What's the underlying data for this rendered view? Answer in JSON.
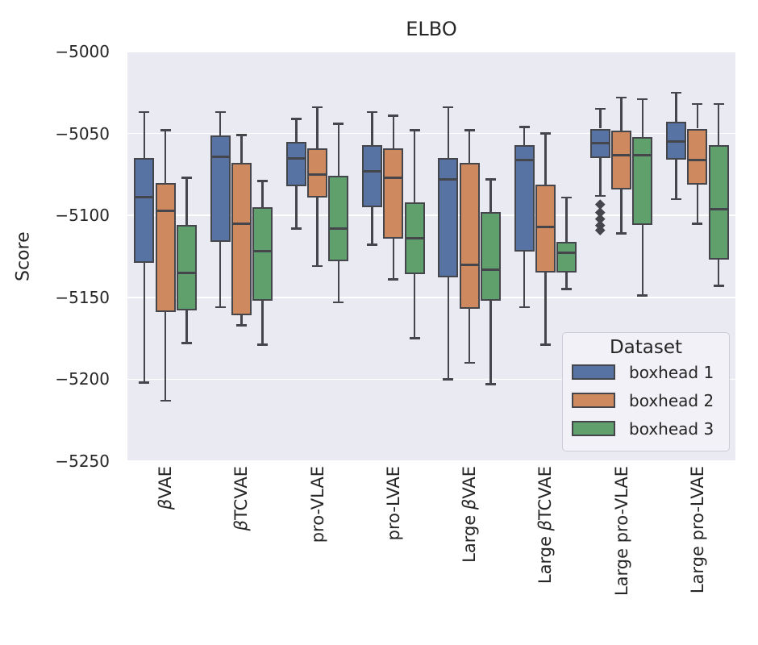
{
  "chart_data": {
    "type": "box",
    "title": "ELBO",
    "xlabel": "",
    "ylabel": "Score",
    "ylim": [
      -5250,
      -5000
    ],
    "yticks": [
      -5000,
      -5050,
      -5100,
      -5150,
      -5200,
      -5250
    ],
    "grid": true,
    "grid_color": "#FFFFFF",
    "plot_bg": "#EAEAF2",
    "line_color": "#45454C",
    "text_color": "#262626",
    "categories": [
      "βVAE",
      "βTCVAE",
      "pro-VLAE",
      "pro-LVAE",
      "Large βVAE",
      "Large βTCVAE",
      "Large pro-VLAE",
      "Large pro-LVAE"
    ],
    "legend": {
      "title": "Dataset",
      "position": "lower right"
    },
    "series": [
      {
        "name": "boxhead 1",
        "color": "#5673A3",
        "boxes": [
          {
            "whislo": -5202,
            "q1": -5129,
            "med": -5089,
            "q3": -5065,
            "whishi": -5037,
            "outliers": []
          },
          {
            "whislo": -5156,
            "q1": -5116,
            "med": -5064,
            "q3": -5051,
            "whishi": -5037,
            "outliers": []
          },
          {
            "whislo": -5108,
            "q1": -5082,
            "med": -5065,
            "q3": -5055,
            "whishi": -5041,
            "outliers": []
          },
          {
            "whislo": -5118,
            "q1": -5095,
            "med": -5073,
            "q3": -5057,
            "whishi": -5037,
            "outliers": []
          },
          {
            "whislo": -5200,
            "q1": -5138,
            "med": -5078,
            "q3": -5065,
            "whishi": -5034,
            "outliers": []
          },
          {
            "whislo": -5156,
            "q1": -5122,
            "med": -5066,
            "q3": -5057,
            "whishi": -5046,
            "outliers": []
          },
          {
            "whislo": -5088,
            "q1": -5065,
            "med": -5056,
            "q3": -5047,
            "whishi": -5035,
            "outliers": [
              -5093,
              -5098,
              -5102,
              -5106,
              -5109
            ]
          },
          {
            "whislo": -5090,
            "q1": -5066,
            "med": -5055,
            "q3": -5043,
            "whishi": -5025,
            "outliers": []
          }
        ]
      },
      {
        "name": "boxhead 2",
        "color": "#CE895E",
        "boxes": [
          {
            "whislo": -5213,
            "q1": -5159,
            "med": -5097,
            "q3": -5080,
            "whishi": -5048,
            "outliers": []
          },
          {
            "whislo": -5167,
            "q1": -5161,
            "med": -5105,
            "q3": -5068,
            "whishi": -5051,
            "outliers": []
          },
          {
            "whislo": -5131,
            "q1": -5089,
            "med": -5075,
            "q3": -5059,
            "whishi": -5034,
            "outliers": []
          },
          {
            "whislo": -5139,
            "q1": -5114,
            "med": -5077,
            "q3": -5059,
            "whishi": -5039,
            "outliers": []
          },
          {
            "whislo": -5190,
            "q1": -5157,
            "med": -5130,
            "q3": -5068,
            "whishi": -5048,
            "outliers": []
          },
          {
            "whislo": -5179,
            "q1": -5135,
            "med": -5107,
            "q3": -5081,
            "whishi": -5050,
            "outliers": []
          },
          {
            "whislo": -5111,
            "q1": -5084,
            "med": -5063,
            "q3": -5048,
            "whishi": -5028,
            "outliers": []
          },
          {
            "whislo": -5105,
            "q1": -5081,
            "med": -5066,
            "q3": -5047,
            "whishi": -5032,
            "outliers": []
          }
        ]
      },
      {
        "name": "boxhead 3",
        "color": "#60A06D",
        "boxes": [
          {
            "whislo": -5178,
            "q1": -5158,
            "med": -5135,
            "q3": -5106,
            "whishi": -5077,
            "outliers": []
          },
          {
            "whislo": -5179,
            "q1": -5152,
            "med": -5122,
            "q3": -5095,
            "whishi": -5079,
            "outliers": []
          },
          {
            "whislo": -5153,
            "q1": -5128,
            "med": -5108,
            "q3": -5076,
            "whishi": -5044,
            "outliers": []
          },
          {
            "whislo": -5175,
            "q1": -5136,
            "med": -5114,
            "q3": -5092,
            "whishi": -5048,
            "outliers": []
          },
          {
            "whislo": -5203,
            "q1": -5152,
            "med": -5133,
            "q3": -5098,
            "whishi": -5078,
            "outliers": []
          },
          {
            "whislo": -5145,
            "q1": -5135,
            "med": -5123,
            "q3": -5116,
            "whishi": -5089,
            "outliers": []
          },
          {
            "whislo": -5149,
            "q1": -5106,
            "med": -5063,
            "q3": -5052,
            "whishi": -5029,
            "outliers": []
          },
          {
            "whislo": -5143,
            "q1": -5127,
            "med": -5096,
            "q3": -5057,
            "whishi": -5032,
            "outliers": []
          }
        ]
      }
    ]
  }
}
